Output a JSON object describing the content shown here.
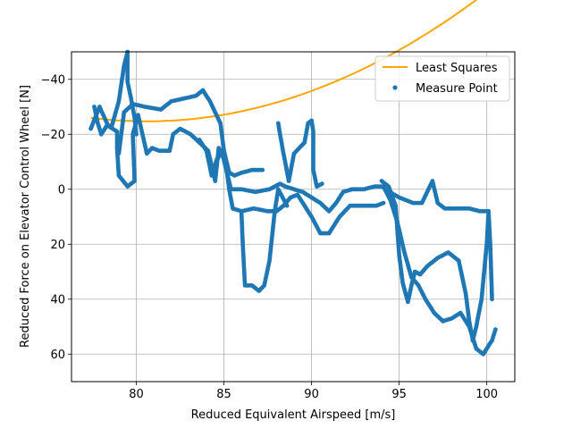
{
  "chart_data": {
    "type": "scatter",
    "xlabel": "Reduced Equivalent Airspeed [m/s]",
    "ylabel": "Reduced Force on Elevator Control Wheel [N]",
    "xlim": [
      76.3,
      101.6
    ],
    "ylim": [
      70,
      -50
    ],
    "y_inverted": true,
    "grid": true,
    "x_ticks": [
      80,
      85,
      90,
      95,
      100
    ],
    "y_ticks": [
      -40,
      -20,
      0,
      20,
      40,
      60
    ],
    "legend_position": "top-right",
    "colors": {
      "measure": "#1f77b4",
      "fit": "#ffa500",
      "grid": "#b0b0b0"
    },
    "series": [
      {
        "name": "Least Squares",
        "kind": "line",
        "coefficients": [
          -0.125,
          0.8,
          -26.0
        ],
        "x_center": 77.4,
        "x_range": [
          77.4,
          100.5
        ]
      },
      {
        "name": "Measure Point",
        "kind": "scatter",
        "paths": [
          [
            [
              77.4,
              -22
            ],
            [
              77.9,
              -30
            ],
            [
              78.4,
              -23
            ],
            [
              78.9,
              -21
            ],
            [
              78.9,
              -15
            ],
            [
              79.0,
              -5
            ],
            [
              79.5,
              -1
            ],
            [
              79.9,
              -3
            ],
            [
              79.8,
              -20
            ],
            [
              80.1,
              -27
            ],
            [
              80.6,
              -13
            ],
            [
              80.9,
              -15
            ],
            [
              81.3,
              -14
            ],
            [
              81.9,
              -14
            ],
            [
              82.1,
              -20
            ],
            [
              82.5,
              -22
            ],
            [
              83.1,
              -20
            ],
            [
              83.6,
              -17
            ],
            [
              84.1,
              -14
            ],
            [
              84.5,
              -3
            ],
            [
              84.7,
              -15
            ],
            [
              84.9,
              -13
            ],
            [
              85.1,
              -8
            ],
            [
              85.4,
              0
            ],
            [
              86.0,
              0
            ],
            [
              86.8,
              1
            ],
            [
              87.6,
              0
            ],
            [
              88.2,
              -2
            ],
            [
              88.5,
              -1
            ],
            [
              89.0,
              0
            ],
            [
              89.5,
              1
            ],
            [
              90.0,
              3
            ],
            [
              90.5,
              5
            ],
            [
              91.0,
              8
            ],
            [
              91.4,
              5
            ],
            [
              91.8,
              1
            ],
            [
              92.3,
              0
            ],
            [
              93.0,
              0
            ],
            [
              93.6,
              -1
            ],
            [
              94.1,
              -1
            ],
            [
              94.5,
              4
            ],
            [
              94.9,
              12
            ],
            [
              95.3,
              23
            ],
            [
              95.7,
              32
            ],
            [
              96.1,
              35
            ],
            [
              96.5,
              40
            ],
            [
              97.0,
              45
            ],
            [
              97.5,
              48
            ],
            [
              98.0,
              47
            ],
            [
              98.5,
              45
            ],
            [
              99.0,
              50
            ],
            [
              99.4,
              58
            ],
            [
              99.8,
              60
            ],
            [
              100.3,
              55
            ],
            [
              100.5,
              51
            ]
          ],
          [
            [
              79.0,
              -13
            ],
            [
              79.3,
              -28
            ],
            [
              79.8,
              -31
            ],
            [
              80.5,
              -30
            ],
            [
              81.4,
              -29
            ],
            [
              82.0,
              -32
            ],
            [
              82.7,
              -33
            ],
            [
              83.4,
              -34
            ],
            [
              83.8,
              -36
            ],
            [
              84.2,
              -32
            ],
            [
              84.8,
              -24
            ],
            [
              85.0,
              -14
            ],
            [
              85.3,
              0
            ],
            [
              85.5,
              7
            ],
            [
              86.0,
              8
            ],
            [
              86.7,
              7
            ],
            [
              87.5,
              8
            ],
            [
              88.0,
              8
            ],
            [
              88.4,
              6
            ],
            [
              88.8,
              3
            ],
            [
              89.2,
              2
            ],
            [
              89.5,
              5
            ],
            [
              90.0,
              10
            ],
            [
              90.5,
              16
            ],
            [
              91.0,
              16
            ],
            [
              91.6,
              10
            ],
            [
              92.2,
              6
            ],
            [
              93.0,
              6
            ],
            [
              93.7,
              6
            ],
            [
              94.1,
              5
            ]
          ],
          [
            [
              77.6,
              -30
            ],
            [
              77.8,
              -24
            ],
            [
              78.0,
              -20
            ],
            [
              78.3,
              -23
            ],
            [
              78.6,
              -23
            ],
            [
              79.0,
              -32
            ],
            [
              79.3,
              -45
            ],
            [
              79.5,
              -50
            ],
            [
              79.5,
              -39
            ],
            [
              79.7,
              -33
            ],
            [
              79.9,
              -26
            ],
            [
              80.0,
              -20
            ]
          ],
          [
            [
              88.1,
              -24
            ],
            [
              88.2,
              -20
            ],
            [
              88.4,
              -13
            ],
            [
              88.7,
              -3
            ],
            [
              89.0,
              -13
            ],
            [
              89.3,
              -15
            ],
            [
              89.6,
              -17
            ],
            [
              89.8,
              -24
            ],
            [
              90.0,
              -25
            ],
            [
              90.1,
              -21
            ],
            [
              90.1,
              -7
            ],
            [
              90.3,
              -1
            ],
            [
              90.6,
              -2
            ]
          ],
          [
            [
              86.0,
              9
            ],
            [
              86.1,
              23
            ],
            [
              86.2,
              35
            ],
            [
              86.6,
              35
            ],
            [
              87.0,
              37
            ],
            [
              87.3,
              35
            ],
            [
              87.6,
              26
            ],
            [
              87.9,
              8
            ],
            [
              88.1,
              0
            ],
            [
              88.6,
              6
            ]
          ],
          [
            [
              94.0,
              -3
            ],
            [
              94.4,
              -1
            ],
            [
              94.8,
              6
            ],
            [
              95.0,
              24
            ],
            [
              95.2,
              34
            ],
            [
              95.5,
              41
            ],
            [
              95.7,
              35
            ],
            [
              95.9,
              30
            ],
            [
              96.2,
              31
            ],
            [
              96.6,
              28
            ],
            [
              97.2,
              25
            ],
            [
              97.8,
              23
            ],
            [
              98.4,
              26
            ],
            [
              98.8,
              38
            ],
            [
              99.0,
              48
            ],
            [
              99.2,
              55
            ],
            [
              99.4,
              50
            ],
            [
              99.7,
              40
            ],
            [
              100.0,
              20
            ],
            [
              100.1,
              8
            ],
            [
              100.2,
              20
            ],
            [
              100.3,
              40
            ]
          ],
          [
            [
              94.2,
              0
            ],
            [
              95.0,
              3
            ],
            [
              95.8,
              5
            ],
            [
              96.3,
              5
            ],
            [
              96.9,
              -3
            ],
            [
              97.2,
              5
            ],
            [
              97.6,
              7
            ],
            [
              98.3,
              7
            ],
            [
              99.0,
              7
            ],
            [
              99.6,
              8
            ],
            [
              100.0,
              8
            ]
          ],
          [
            [
              83.6,
              -18
            ],
            [
              84.0,
              -14
            ],
            [
              84.3,
              -5
            ],
            [
              84.6,
              -11
            ],
            [
              85.0,
              -14
            ],
            [
              85.3,
              -6
            ],
            [
              85.6,
              -5
            ],
            [
              86.0,
              -6
            ],
            [
              86.6,
              -7
            ],
            [
              87.2,
              -7
            ]
          ]
        ]
      }
    ]
  }
}
